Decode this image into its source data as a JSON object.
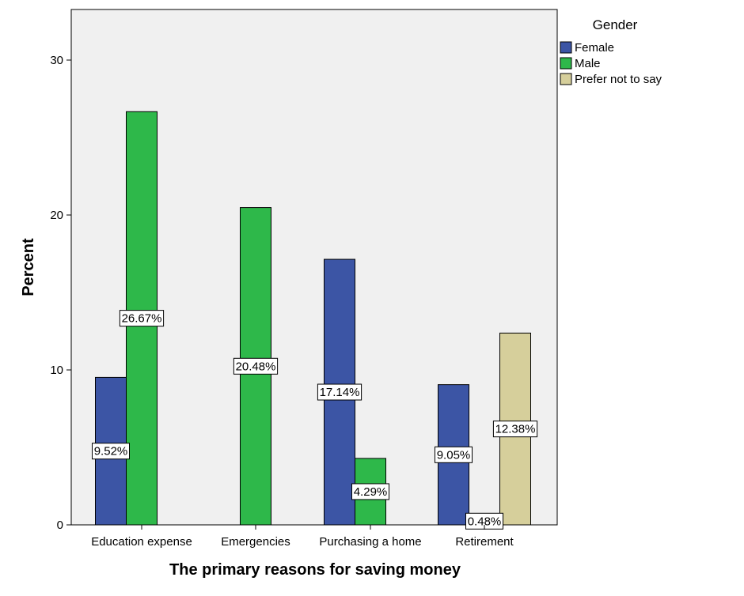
{
  "chart_data": {
    "type": "bar",
    "xlabel": "The primary reasons for saving money",
    "ylabel": "Percent",
    "ylim": [
      0,
      33
    ],
    "yticks": [
      0,
      10,
      20,
      30
    ],
    "grid": false,
    "legend_position": "top-right",
    "legend_title": "Gender",
    "categories": [
      "Education expense",
      "Emergencies",
      "Purchasing a home",
      "Retirement"
    ],
    "series": [
      {
        "name": "Female",
        "color": "#3c55a5",
        "values": [
          9.52,
          null,
          17.14,
          9.05
        ],
        "labels": [
          "9.52%",
          "",
          "17.14%",
          "9.05%"
        ]
      },
      {
        "name": "Male",
        "color": "#2eb84a",
        "values": [
          26.67,
          20.48,
          4.29,
          0.48
        ],
        "labels": [
          "26.67%",
          "20.48%",
          "4.29%",
          "0.48%"
        ]
      },
      {
        "name": "Prefer not to say",
        "color": "#d6cf9b",
        "values": [
          null,
          null,
          null,
          12.38
        ],
        "labels": [
          "",
          "",
          "",
          "12.38%"
        ]
      }
    ]
  }
}
